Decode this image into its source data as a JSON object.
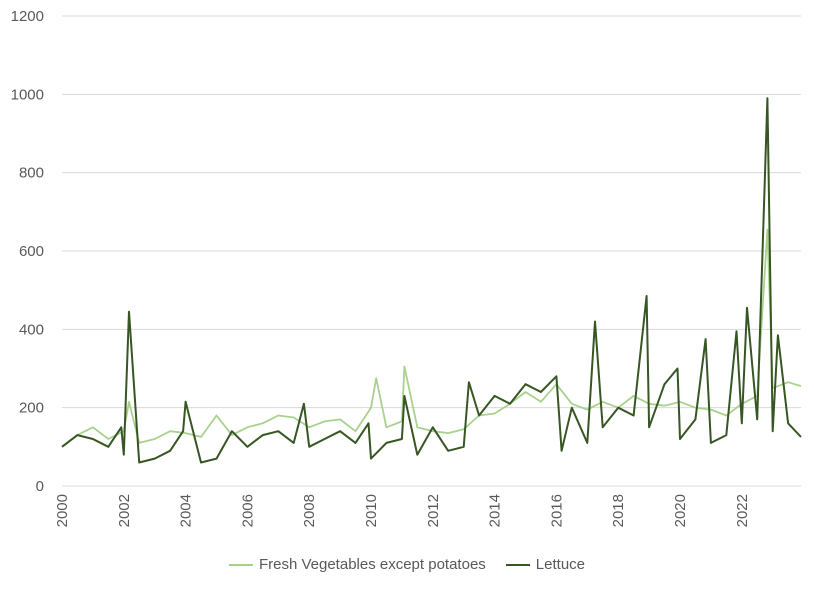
{
  "chart_data": {
    "type": "line",
    "title": "",
    "xlabel": "",
    "ylabel": "",
    "ylim": [
      0,
      1200
    ],
    "xlim": [
      2000,
      2023.917
    ],
    "yticks": [
      "0",
      "200",
      "400",
      "600",
      "800",
      "1000",
      "1200"
    ],
    "xticks": [
      "2000",
      "2002",
      "2004",
      "2006",
      "2008",
      "2010",
      "2012",
      "2014",
      "2016",
      "2018",
      "2020",
      "2022"
    ],
    "grid": true,
    "legend_position": "bottom",
    "series": [
      {
        "name": "Fresh Vegetables except potatoes",
        "color": "#a9d18e",
        "x": [
          2000.0,
          2000.5,
          2001.0,
          2001.5,
          2002.0,
          2002.17,
          2002.5,
          2003.0,
          2003.5,
          2004.0,
          2004.5,
          2005.0,
          2005.5,
          2006.0,
          2006.5,
          2007.0,
          2007.5,
          2008.0,
          2008.5,
          2009.0,
          2009.5,
          2010.0,
          2010.17,
          2010.5,
          2011.0,
          2011.08,
          2011.5,
          2012.0,
          2012.5,
          2013.0,
          2013.5,
          2014.0,
          2014.5,
          2015.0,
          2015.5,
          2016.0,
          2016.5,
          2017.0,
          2017.5,
          2018.0,
          2018.5,
          2019.0,
          2019.5,
          2020.0,
          2020.5,
          2021.0,
          2021.5,
          2022.0,
          2022.5,
          2022.83,
          2023.0,
          2023.5,
          2023.917
        ],
        "values": [
          100,
          130,
          150,
          120,
          140,
          215,
          110,
          120,
          140,
          135,
          125,
          180,
          130,
          150,
          160,
          180,
          175,
          150,
          165,
          170,
          140,
          200,
          275,
          150,
          165,
          305,
          150,
          140,
          135,
          145,
          180,
          185,
          210,
          240,
          215,
          260,
          210,
          195,
          215,
          200,
          230,
          210,
          205,
          215,
          200,
          195,
          180,
          210,
          230,
          655,
          250,
          265,
          255
        ]
      },
      {
        "name": "Lettuce",
        "color": "#375623",
        "x": [
          2000.0,
          2000.5,
          2001.0,
          2001.5,
          2001.92,
          2002.0,
          2002.17,
          2002.5,
          2003.0,
          2003.5,
          2003.92,
          2004.0,
          2004.5,
          2005.0,
          2005.5,
          2006.0,
          2006.5,
          2007.0,
          2007.5,
          2007.83,
          2008.0,
          2008.5,
          2009.0,
          2009.5,
          2009.92,
          2010.0,
          2010.5,
          2011.0,
          2011.08,
          2011.5,
          2012.0,
          2012.5,
          2013.0,
          2013.17,
          2013.5,
          2014.0,
          2014.5,
          2015.0,
          2015.5,
          2016.0,
          2016.17,
          2016.5,
          2017.0,
          2017.25,
          2017.5,
          2018.0,
          2018.5,
          2018.92,
          2019.0,
          2019.5,
          2019.92,
          2020.0,
          2020.5,
          2020.83,
          2021.0,
          2021.5,
          2021.83,
          2022.0,
          2022.17,
          2022.5,
          2022.83,
          2023.0,
          2023.17,
          2023.5,
          2023.917
        ],
        "values": [
          100,
          130,
          120,
          100,
          150,
          80,
          445,
          60,
          70,
          90,
          140,
          215,
          60,
          70,
          140,
          100,
          130,
          140,
          110,
          210,
          100,
          120,
          140,
          110,
          160,
          70,
          110,
          120,
          230,
          80,
          150,
          90,
          100,
          265,
          180,
          230,
          210,
          260,
          240,
          280,
          90,
          200,
          110,
          420,
          150,
          200,
          180,
          485,
          150,
          260,
          300,
          120,
          170,
          375,
          110,
          130,
          395,
          160,
          455,
          170,
          990,
          140,
          385,
          160,
          125
        ]
      }
    ]
  }
}
